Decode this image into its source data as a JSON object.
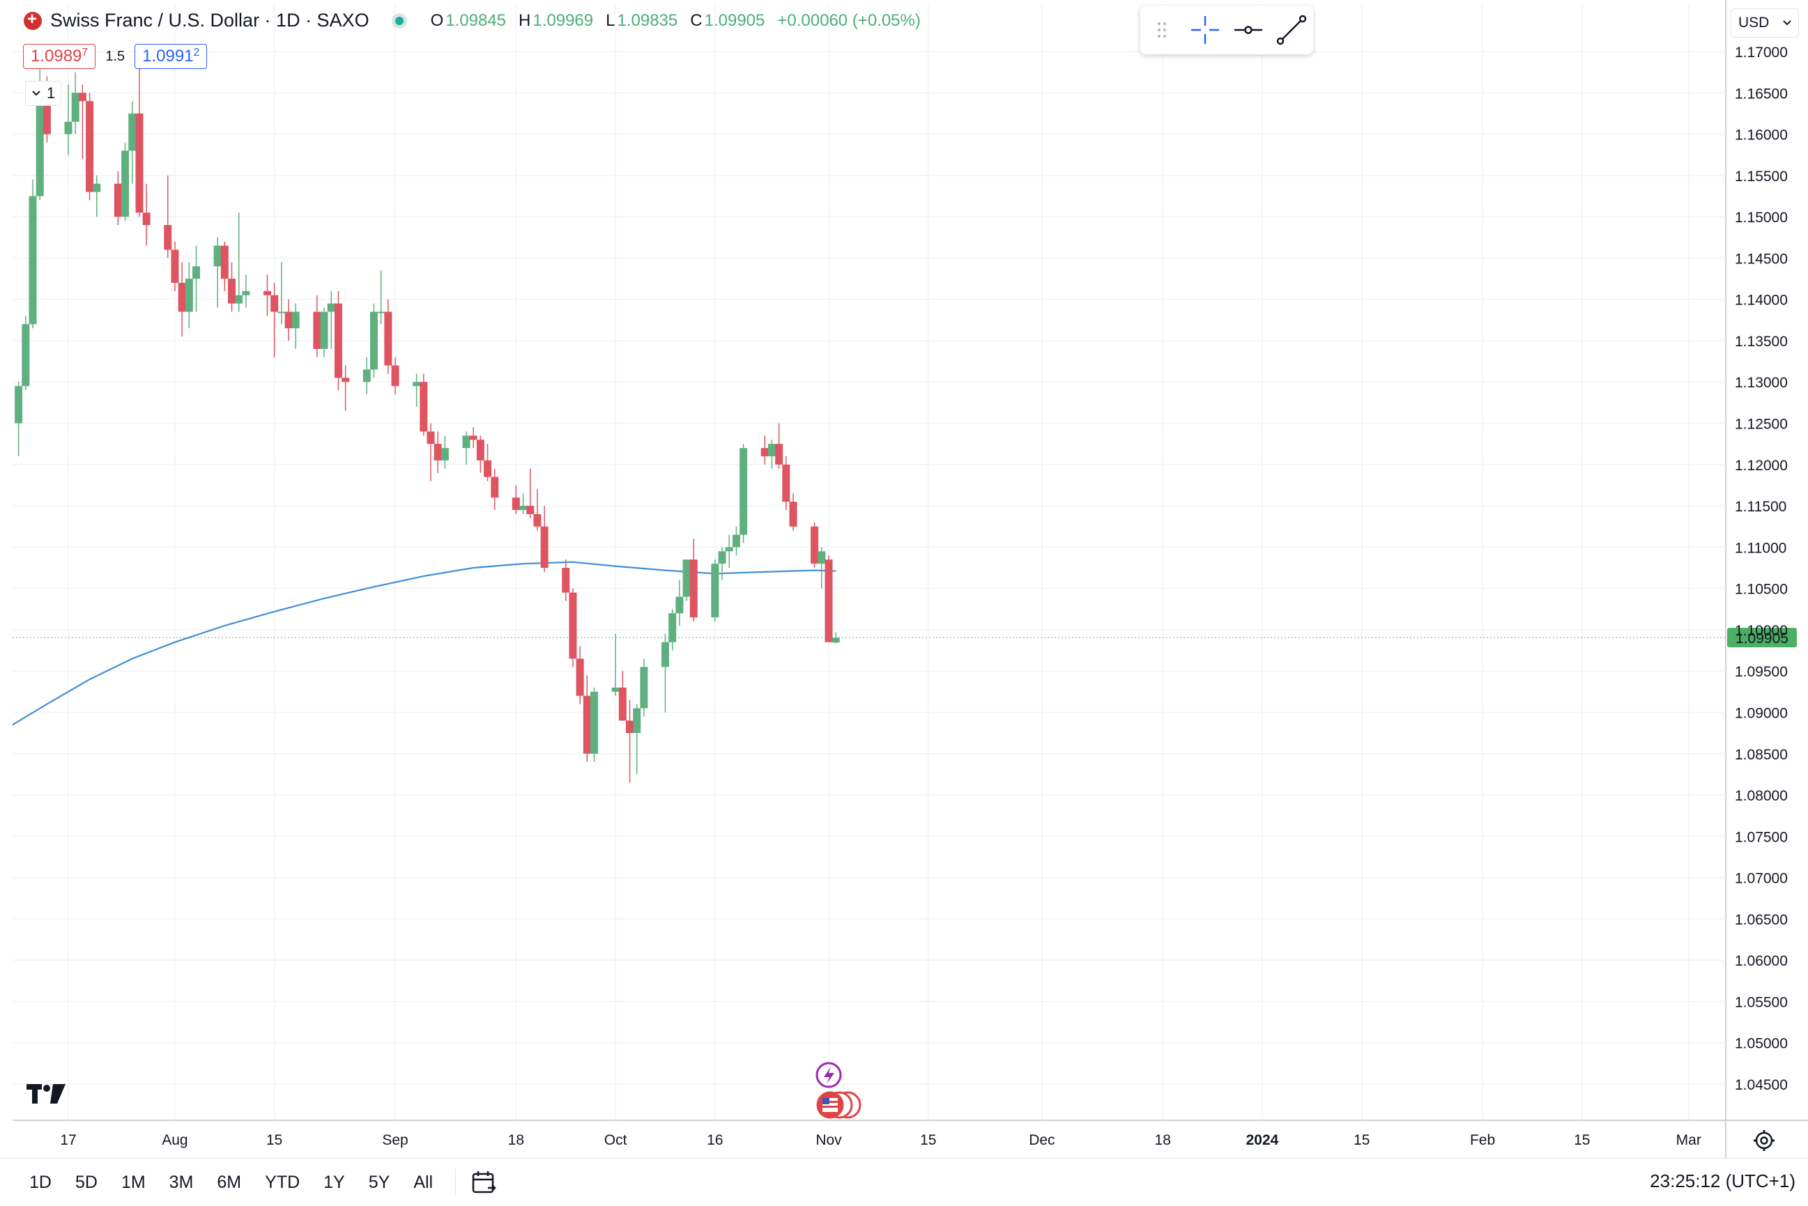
{
  "header": {
    "title": "Swiss Franc / U.S. Dollar · 1D · SAXO",
    "ohlc": [
      {
        "key": "O",
        "value": "1.09845"
      },
      {
        "key": "H",
        "value": "1.09969"
      },
      {
        "key": "L",
        "value": "1.09835"
      },
      {
        "key": "C",
        "value": "1.09905"
      }
    ],
    "change": "+0.00060 (+0.05%)",
    "sell_price_main": "1.0989",
    "sell_price_pip": "7",
    "spread": "1.5",
    "buy_price_main": "1.0991",
    "buy_price_pip": "2",
    "quantity": "1"
  },
  "currency_selector": "USD",
  "last_price_label": "1.09905",
  "range_buttons": [
    "1D",
    "5D",
    "1M",
    "3M",
    "6M",
    "YTD",
    "1Y",
    "5Y",
    "All"
  ],
  "clock": "23:25:12 (UTC+1)",
  "colors": {
    "up": "#5fb07f",
    "down": "#de5460",
    "ma": "#3f8ed8",
    "last_price": "#4caf64"
  },
  "icons": [
    "drag-handle-icon",
    "crosshair-icon",
    "horizontal-ray-icon",
    "trend-line-icon",
    "calendar-icon",
    "tradingview-logo-icon",
    "settings-gear-icon",
    "lightning-event-icon",
    "us-flag-event-icon"
  ],
  "chart_data": {
    "type": "candlestick",
    "title": "Swiss Franc / U.S. Dollar · 1D · SAXO",
    "y_range": [
      1.0425,
      1.1725
    ],
    "y_ticks": [
      "1.17000",
      "1.16500",
      "1.16000",
      "1.15500",
      "1.15000",
      "1.14500",
      "1.14000",
      "1.13500",
      "1.13000",
      "1.12500",
      "1.12000",
      "1.11500",
      "1.11000",
      "1.10500",
      "1.10000",
      "1.09500",
      "1.09000",
      "1.08500",
      "1.08000",
      "1.07500",
      "1.07000",
      "1.06500",
      "1.06000",
      "1.05500",
      "1.05000",
      "1.04500"
    ],
    "x_ticks": [
      {
        "label": "17",
        "date": "2023-07-17"
      },
      {
        "label": "Aug",
        "date": "2023-08-01"
      },
      {
        "label": "15",
        "date": "2023-08-15"
      },
      {
        "label": "Sep",
        "date": "2023-09-01"
      },
      {
        "label": "18",
        "date": "2023-09-18"
      },
      {
        "label": "Oct",
        "date": "2023-10-02"
      },
      {
        "label": "16",
        "date": "2023-10-16"
      },
      {
        "label": "Nov",
        "date": "2023-11-01"
      },
      {
        "label": "15",
        "date": "2023-11-15"
      },
      {
        "label": "Dec",
        "date": "2023-12-01"
      },
      {
        "label": "18",
        "date": "2023-12-18"
      },
      {
        "label": "2024",
        "date": "2024-01-01"
      },
      {
        "label": "15",
        "date": "2024-01-15"
      },
      {
        "label": "Feb",
        "date": "2024-02-01"
      },
      {
        "label": "15",
        "date": "2024-02-15"
      },
      {
        "label": "Mar",
        "date": "2024-03-01"
      }
    ],
    "candles": [
      {
        "date": "2023-07-10",
        "o": 1.125,
        "h": 1.13,
        "l": 1.121,
        "c": 1.1295
      },
      {
        "date": "2023-07-11",
        "o": 1.1295,
        "h": 1.138,
        "l": 1.129,
        "c": 1.137
      },
      {
        "date": "2023-07-12",
        "o": 1.137,
        "h": 1.1545,
        "l": 1.1365,
        "c": 1.1525
      },
      {
        "date": "2023-07-13",
        "o": 1.1525,
        "h": 1.168,
        "l": 1.152,
        "c": 1.165
      },
      {
        "date": "2023-07-14",
        "o": 1.165,
        "h": 1.167,
        "l": 1.159,
        "c": 1.16
      },
      {
        "date": "2023-07-17",
        "o": 1.16,
        "h": 1.166,
        "l": 1.1575,
        "c": 1.1615
      },
      {
        "date": "2023-07-18",
        "o": 1.1615,
        "h": 1.1675,
        "l": 1.16,
        "c": 1.165
      },
      {
        "date": "2023-07-19",
        "o": 1.165,
        "h": 1.166,
        "l": 1.157,
        "c": 1.164
      },
      {
        "date": "2023-07-20",
        "o": 1.164,
        "h": 1.165,
        "l": 1.152,
        "c": 1.153
      },
      {
        "date": "2023-07-21",
        "o": 1.153,
        "h": 1.155,
        "l": 1.15,
        "c": 1.154
      },
      {
        "date": "2023-07-24",
        "o": 1.154,
        "h": 1.1555,
        "l": 1.149,
        "c": 1.15
      },
      {
        "date": "2023-07-25",
        "o": 1.15,
        "h": 1.159,
        "l": 1.1495,
        "c": 1.158
      },
      {
        "date": "2023-07-26",
        "o": 1.158,
        "h": 1.164,
        "l": 1.154,
        "c": 1.1625
      },
      {
        "date": "2023-07-27",
        "o": 1.1625,
        "h": 1.168,
        "l": 1.15,
        "c": 1.1505
      },
      {
        "date": "2023-07-28",
        "o": 1.1505,
        "h": 1.154,
        "l": 1.1465,
        "c": 1.149
      },
      {
        "date": "2023-07-31",
        "o": 1.149,
        "h": 1.155,
        "l": 1.145,
        "c": 1.146
      },
      {
        "date": "2023-08-01",
        "o": 1.146,
        "h": 1.147,
        "l": 1.141,
        "c": 1.142
      },
      {
        "date": "2023-08-02",
        "o": 1.142,
        "h": 1.1445,
        "l": 1.1355,
        "c": 1.1385
      },
      {
        "date": "2023-08-03",
        "o": 1.1385,
        "h": 1.1445,
        "l": 1.1365,
        "c": 1.1425
      },
      {
        "date": "2023-08-04",
        "o": 1.1425,
        "h": 1.1465,
        "l": 1.1385,
        "c": 1.144
      },
      {
        "date": "2023-08-07",
        "o": 1.144,
        "h": 1.1475,
        "l": 1.139,
        "c": 1.1465
      },
      {
        "date": "2023-08-08",
        "o": 1.1465,
        "h": 1.147,
        "l": 1.141,
        "c": 1.1425
      },
      {
        "date": "2023-08-09",
        "o": 1.1425,
        "h": 1.1445,
        "l": 1.1385,
        "c": 1.1395
      },
      {
        "date": "2023-08-10",
        "o": 1.1395,
        "h": 1.1505,
        "l": 1.1385,
        "c": 1.1405
      },
      {
        "date": "2023-08-11",
        "o": 1.1405,
        "h": 1.143,
        "l": 1.139,
        "c": 1.141
      },
      {
        "date": "2023-08-14",
        "o": 1.141,
        "h": 1.143,
        "l": 1.138,
        "c": 1.1405
      },
      {
        "date": "2023-08-15",
        "o": 1.1405,
        "h": 1.142,
        "l": 1.133,
        "c": 1.1385
      },
      {
        "date": "2023-08-16",
        "o": 1.1385,
        "h": 1.1445,
        "l": 1.137,
        "c": 1.1385
      },
      {
        "date": "2023-08-17",
        "o": 1.1385,
        "h": 1.14,
        "l": 1.135,
        "c": 1.1365
      },
      {
        "date": "2023-08-18",
        "o": 1.1365,
        "h": 1.1395,
        "l": 1.134,
        "c": 1.1385
      },
      {
        "date": "2023-08-21",
        "o": 1.1385,
        "h": 1.1405,
        "l": 1.133,
        "c": 1.134
      },
      {
        "date": "2023-08-22",
        "o": 1.134,
        "h": 1.139,
        "l": 1.133,
        "c": 1.1385
      },
      {
        "date": "2023-08-23",
        "o": 1.1385,
        "h": 1.141,
        "l": 1.134,
        "c": 1.1395
      },
      {
        "date": "2023-08-24",
        "o": 1.1395,
        "h": 1.141,
        "l": 1.129,
        "c": 1.1305
      },
      {
        "date": "2023-08-25",
        "o": 1.1305,
        "h": 1.132,
        "l": 1.1265,
        "c": 1.13
      },
      {
        "date": "2023-08-28",
        "o": 1.13,
        "h": 1.133,
        "l": 1.1285,
        "c": 1.1315
      },
      {
        "date": "2023-08-29",
        "o": 1.1315,
        "h": 1.1395,
        "l": 1.1305,
        "c": 1.1385
      },
      {
        "date": "2023-08-30",
        "o": 1.1385,
        "h": 1.1435,
        "l": 1.137,
        "c": 1.1385
      },
      {
        "date": "2023-08-31",
        "o": 1.1385,
        "h": 1.14,
        "l": 1.131,
        "c": 1.132
      },
      {
        "date": "2023-09-01",
        "o": 1.132,
        "h": 1.133,
        "l": 1.1285,
        "c": 1.1295
      },
      {
        "date": "2023-09-04",
        "o": 1.1295,
        "h": 1.131,
        "l": 1.127,
        "c": 1.13
      },
      {
        "date": "2023-09-05",
        "o": 1.13,
        "h": 1.131,
        "l": 1.1235,
        "c": 1.124
      },
      {
        "date": "2023-09-06",
        "o": 1.124,
        "h": 1.125,
        "l": 1.118,
        "c": 1.1225
      },
      {
        "date": "2023-09-07",
        "o": 1.1225,
        "h": 1.124,
        "l": 1.119,
        "c": 1.1205
      },
      {
        "date": "2023-09-08",
        "o": 1.1205,
        "h": 1.1235,
        "l": 1.1195,
        "c": 1.122
      },
      {
        "date": "2023-09-11",
        "o": 1.122,
        "h": 1.124,
        "l": 1.12,
        "c": 1.1235
      },
      {
        "date": "2023-09-12",
        "o": 1.1235,
        "h": 1.1245,
        "l": 1.122,
        "c": 1.123
      },
      {
        "date": "2023-09-13",
        "o": 1.123,
        "h": 1.1235,
        "l": 1.119,
        "c": 1.1205
      },
      {
        "date": "2023-09-14",
        "o": 1.1205,
        "h": 1.1225,
        "l": 1.118,
        "c": 1.1185
      },
      {
        "date": "2023-09-15",
        "o": 1.1185,
        "h": 1.1195,
        "l": 1.1145,
        "c": 1.116
      },
      {
        "date": "2023-09-18",
        "o": 1.116,
        "h": 1.1175,
        "l": 1.114,
        "c": 1.1145
      },
      {
        "date": "2023-09-19",
        "o": 1.1145,
        "h": 1.1165,
        "l": 1.114,
        "c": 1.115
      },
      {
        "date": "2023-09-20",
        "o": 1.115,
        "h": 1.1195,
        "l": 1.1135,
        "c": 1.114
      },
      {
        "date": "2023-09-21",
        "o": 1.114,
        "h": 1.117,
        "l": 1.112,
        "c": 1.1125
      },
      {
        "date": "2023-09-22",
        "o": 1.1125,
        "h": 1.115,
        "l": 1.107,
        "c": 1.1075
      },
      {
        "date": "2023-09-25",
        "o": 1.1075,
        "h": 1.1085,
        "l": 1.1035,
        "c": 1.1045
      },
      {
        "date": "2023-09-26",
        "o": 1.1045,
        "h": 1.105,
        "l": 1.0955,
        "c": 1.0965
      },
      {
        "date": "2023-09-27",
        "o": 1.0965,
        "h": 1.098,
        "l": 1.091,
        "c": 1.092
      },
      {
        "date": "2023-09-28",
        "o": 1.092,
        "h": 1.0945,
        "l": 1.084,
        "c": 1.085
      },
      {
        "date": "2023-09-29",
        "o": 1.085,
        "h": 1.093,
        "l": 1.084,
        "c": 1.0925
      },
      {
        "date": "2023-10-02",
        "o": 1.0925,
        "h": 1.0995,
        "l": 1.092,
        "c": 1.093
      },
      {
        "date": "2023-10-03",
        "o": 1.093,
        "h": 1.095,
        "l": 1.089,
        "c": 1.089
      },
      {
        "date": "2023-10-04",
        "o": 1.089,
        "h": 1.0915,
        "l": 1.0815,
        "c": 1.0875
      },
      {
        "date": "2023-10-05",
        "o": 1.0875,
        "h": 1.091,
        "l": 1.0825,
        "c": 1.0905
      },
      {
        "date": "2023-10-06",
        "o": 1.0905,
        "h": 1.0965,
        "l": 1.0895,
        "c": 1.0955
      },
      {
        "date": "2023-10-09",
        "o": 1.0955,
        "h": 1.0995,
        "l": 1.09,
        "c": 1.0985
      },
      {
        "date": "2023-10-10",
        "o": 1.0985,
        "h": 1.1025,
        "l": 1.0975,
        "c": 1.102
      },
      {
        "date": "2023-10-11",
        "o": 1.102,
        "h": 1.106,
        "l": 1.1005,
        "c": 1.104
      },
      {
        "date": "2023-10-12",
        "o": 1.104,
        "h": 1.1085,
        "l": 1.1035,
        "c": 1.1085
      },
      {
        "date": "2023-10-13",
        "o": 1.1085,
        "h": 1.111,
        "l": 1.101,
        "c": 1.1015
      },
      {
        "date": "2023-10-16",
        "o": 1.1015,
        "h": 1.1085,
        "l": 1.101,
        "c": 1.108
      },
      {
        "date": "2023-10-17",
        "o": 1.108,
        "h": 1.11,
        "l": 1.106,
        "c": 1.1095
      },
      {
        "date": "2023-10-18",
        "o": 1.1095,
        "h": 1.1115,
        "l": 1.1075,
        "c": 1.11
      },
      {
        "date": "2023-10-19",
        "o": 1.11,
        "h": 1.1125,
        "l": 1.109,
        "c": 1.1115
      },
      {
        "date": "2023-10-20",
        "o": 1.1115,
        "h": 1.1225,
        "l": 1.1105,
        "c": 1.122
      },
      {
        "date": "2023-10-23",
        "o": 1.122,
        "h": 1.1235,
        "l": 1.12,
        "c": 1.121
      },
      {
        "date": "2023-10-24",
        "o": 1.121,
        "h": 1.123,
        "l": 1.1195,
        "c": 1.1225
      },
      {
        "date": "2023-10-25",
        "o": 1.1225,
        "h": 1.125,
        "l": 1.1195,
        "c": 1.12
      },
      {
        "date": "2023-10-26",
        "o": 1.12,
        "h": 1.121,
        "l": 1.1145,
        "c": 1.1155
      },
      {
        "date": "2023-10-27",
        "o": 1.1155,
        "h": 1.1165,
        "l": 1.112,
        "c": 1.1125
      },
      {
        "date": "2023-10-30",
        "o": 1.1125,
        "h": 1.113,
        "l": 1.1075,
        "c": 1.108
      },
      {
        "date": "2023-10-31",
        "o": 1.108,
        "h": 1.11,
        "l": 1.105,
        "c": 1.1095
      },
      {
        "date": "2023-11-01",
        "o": 1.1085,
        "h": 1.109,
        "l": 1.0985,
        "c": 1.0985
      },
      {
        "date": "2023-11-02",
        "o": 1.09845,
        "h": 1.09969,
        "l": 1.09835,
        "c": 1.09905
      }
    ],
    "moving_average": {
      "points": [
        [
          "2023-07-10",
          1.0885
        ],
        [
          "2023-07-14",
          1.091
        ],
        [
          "2023-07-20",
          1.094
        ],
        [
          "2023-07-26",
          1.0965
        ],
        [
          "2023-08-01",
          1.0985
        ],
        [
          "2023-08-08",
          1.1005
        ],
        [
          "2023-08-15",
          1.1022
        ],
        [
          "2023-08-22",
          1.1038
        ],
        [
          "2023-08-29",
          1.1052
        ],
        [
          "2023-09-05",
          1.1065
        ],
        [
          "2023-09-12",
          1.1075
        ],
        [
          "2023-09-19",
          1.108
        ],
        [
          "2023-09-26",
          1.1082
        ],
        [
          "2023-10-02",
          1.1077
        ],
        [
          "2023-10-09",
          1.1072
        ],
        [
          "2023-10-16",
          1.1068
        ],
        [
          "2023-10-23",
          1.107
        ],
        [
          "2023-10-30",
          1.1072
        ],
        [
          "2023-11-02",
          1.1071
        ]
      ]
    },
    "last_price": 1.09905
  }
}
